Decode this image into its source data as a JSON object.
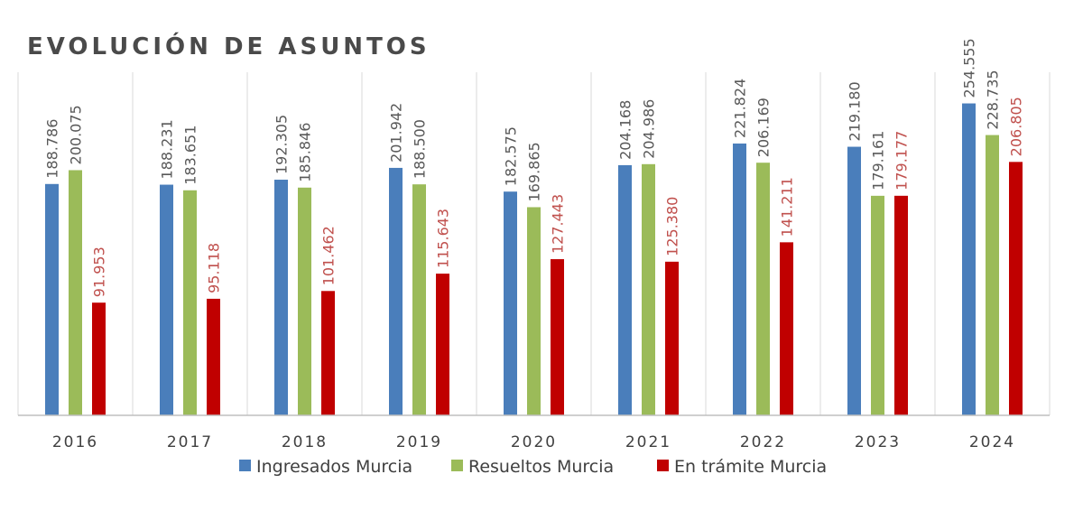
{
  "chart_data": {
    "type": "bar",
    "title": "EVOLUCIÓN DE ASUNTOS",
    "xlabel": "",
    "ylabel": "",
    "categories": [
      "2016",
      "2017",
      "2018",
      "2019",
      "2020",
      "2021",
      "2022",
      "2023",
      "2024"
    ],
    "ylim": [
      0,
      280000
    ],
    "grid": false,
    "legend_position": "bottom",
    "series": [
      {
        "name": "Ingresados Murcia",
        "color": "#4a7ebb",
        "label_color": "#595959",
        "values": [
          188786,
          188231,
          192305,
          201942,
          182575,
          204168,
          221824,
          219180,
          254555
        ],
        "labels": [
          "188.786",
          "188.231",
          "192.305",
          "201.942",
          "182.575",
          "204.168",
          "221.824",
          "219.180",
          "254.555"
        ]
      },
      {
        "name": "Resueltos Murcia",
        "color": "#9bbb59",
        "label_color": "#595959",
        "values": [
          200075,
          183651,
          185846,
          188500,
          169865,
          204986,
          206169,
          179161,
          228735
        ],
        "labels": [
          "200.075",
          "183.651",
          "185.846",
          "188.500",
          "169.865",
          "204.986",
          "206.169",
          "179.161",
          "228.735"
        ]
      },
      {
        "name": "En trámite Murcia",
        "color": "#c00000",
        "label_color": "#c0504d",
        "values": [
          91953,
          95118,
          101462,
          115643,
          127443,
          125380,
          141211,
          179177,
          206805
        ],
        "labels": [
          "91.953",
          "95.118",
          "101.462",
          "115.643",
          "127.443",
          "125.380",
          "141.211",
          "179.177",
          "206.805"
        ]
      }
    ]
  }
}
